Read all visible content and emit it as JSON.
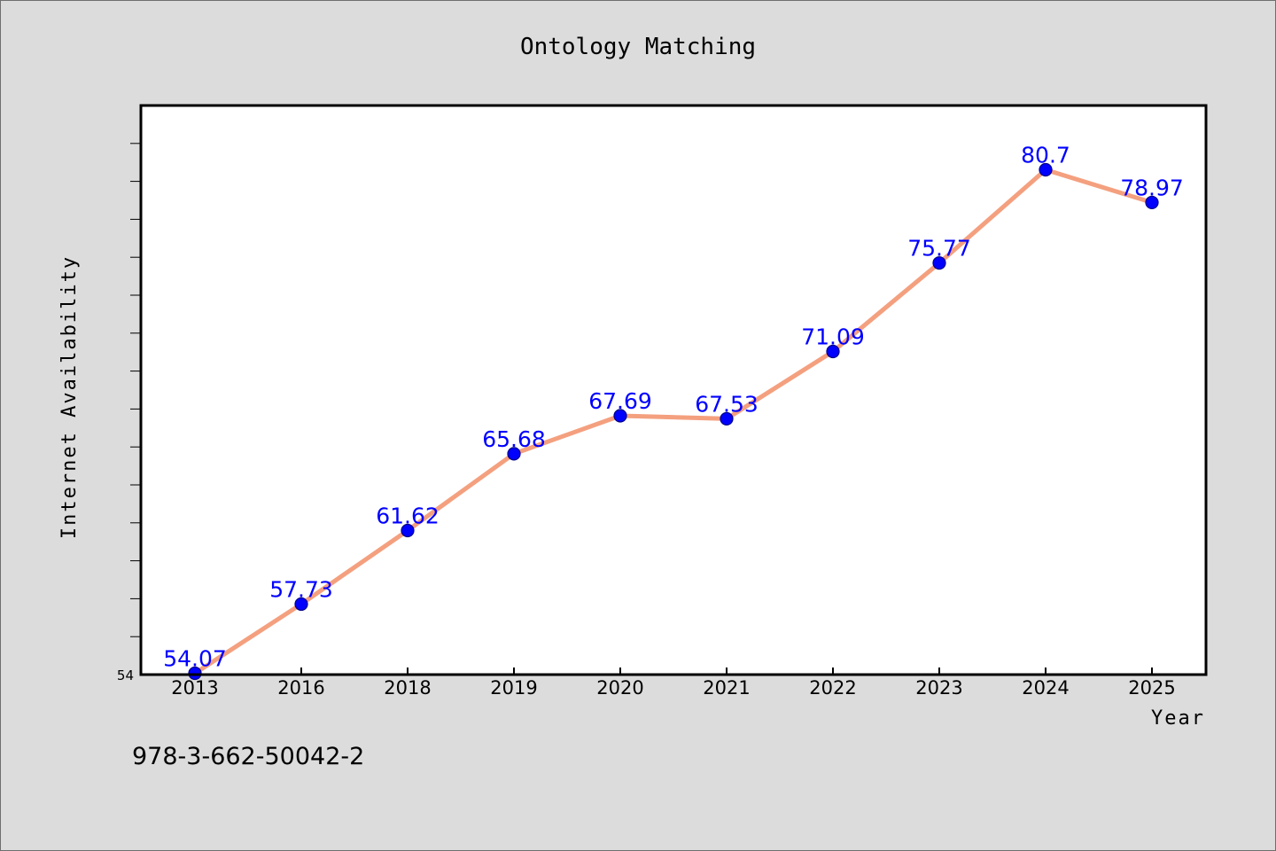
{
  "chart_data": {
    "type": "line",
    "title": "Ontology Matching",
    "xlabel": "Year",
    "ylabel": "Internet Availability",
    "categories": [
      "2013",
      "2016",
      "2018",
      "2019",
      "2020",
      "2021",
      "2022",
      "2023",
      "2024",
      "2025"
    ],
    "series": [
      {
        "values": [
          54.07,
          57.73,
          61.62,
          65.68,
          67.69,
          67.53,
          71.09,
          75.77,
          80.7,
          78.97
        ],
        "data_labels": [
          "54.07",
          "57.73",
          "61.62",
          "65.68",
          "67.69",
          "67.53",
          "71.09",
          "75.77",
          "80.7",
          "78.97"
        ]
      }
    ],
    "ylim": [
      54,
      84.1
    ],
    "y_tick_labels": [
      "54"
    ],
    "grid": false,
    "line_color": "#f4a07f",
    "marker_color": "#0000ff",
    "label_color": "#0000ff",
    "plot_background": "#ffffff",
    "page_background": "#dcdcdc"
  },
  "footer": {
    "text": "978-3-662-50042-2"
  }
}
